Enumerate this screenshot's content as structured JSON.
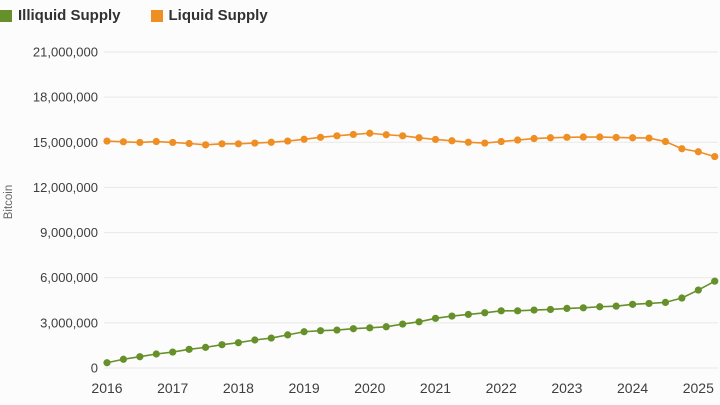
{
  "chart_data": {
    "type": "line",
    "title": "",
    "xlabel": "",
    "ylabel": "Bitcoin",
    "legend_position": "top-left",
    "grid": "horizontal",
    "background_color": "#fcfcfc",
    "gridline_color": "#e8e8e8",
    "xlim": [
      2016,
      2025.4
    ],
    "ylim": [
      0,
      21000000
    ],
    "yticks": [
      {
        "v": 0,
        "label": "0"
      },
      {
        "v": 3000000,
        "label": "3,000,000"
      },
      {
        "v": 6000000,
        "label": "6,000,000"
      },
      {
        "v": 9000000,
        "label": "9,000,000"
      },
      {
        "v": 12000000,
        "label": "12,000,000"
      },
      {
        "v": 15000000,
        "label": "15,000,000"
      },
      {
        "v": 18000000,
        "label": "18,000,000"
      },
      {
        "v": 21000000,
        "label": "21,000,000"
      }
    ],
    "xticks": [
      {
        "v": 2016,
        "label": "2016"
      },
      {
        "v": 2017,
        "label": "2017"
      },
      {
        "v": 2018,
        "label": "2018"
      },
      {
        "v": 2019,
        "label": "2019"
      },
      {
        "v": 2020,
        "label": "2020"
      },
      {
        "v": 2021,
        "label": "2021"
      },
      {
        "v": 2022,
        "label": "2022"
      },
      {
        "v": 2023,
        "label": "2023"
      },
      {
        "v": 2024,
        "label": "2024"
      },
      {
        "v": 2025,
        "label": "2025"
      }
    ],
    "x": [
      2016.0,
      2016.25,
      2016.5,
      2016.75,
      2017.0,
      2017.25,
      2017.5,
      2017.75,
      2018.0,
      2018.25,
      2018.5,
      2018.75,
      2019.0,
      2019.25,
      2019.5,
      2019.75,
      2020.0,
      2020.25,
      2020.5,
      2020.75,
      2021.0,
      2021.25,
      2021.5,
      2021.75,
      2022.0,
      2022.25,
      2022.5,
      2022.75,
      2023.0,
      2023.25,
      2023.5,
      2023.75,
      2024.0,
      2024.25,
      2024.5,
      2024.75,
      2025.0,
      2025.25
    ],
    "series": [
      {
        "name": "Illiquid Supply",
        "color": "#66902A",
        "values": [
          350000,
          580000,
          750000,
          930000,
          1060000,
          1240000,
          1370000,
          1550000,
          1680000,
          1860000,
          1990000,
          2200000,
          2410000,
          2480000,
          2520000,
          2610000,
          2670000,
          2740000,
          2920000,
          3070000,
          3300000,
          3450000,
          3560000,
          3670000,
          3800000,
          3800000,
          3850000,
          3890000,
          3960000,
          4000000,
          4070000,
          4110000,
          4230000,
          4290000,
          4360000,
          4650000,
          5180000,
          5770000
        ]
      },
      {
        "name": "Liquid Supply",
        "color": "#EF8E23",
        "values": [
          15080000,
          15030000,
          14990000,
          15050000,
          14990000,
          14920000,
          14830000,
          14900000,
          14900000,
          14950000,
          15000000,
          15080000,
          15200000,
          15330000,
          15430000,
          15520000,
          15600000,
          15500000,
          15430000,
          15300000,
          15190000,
          15100000,
          15000000,
          14950000,
          15050000,
          15150000,
          15250000,
          15300000,
          15330000,
          15350000,
          15350000,
          15320000,
          15300000,
          15280000,
          15050000,
          14570000,
          14370000,
          14050000
        ]
      }
    ]
  }
}
